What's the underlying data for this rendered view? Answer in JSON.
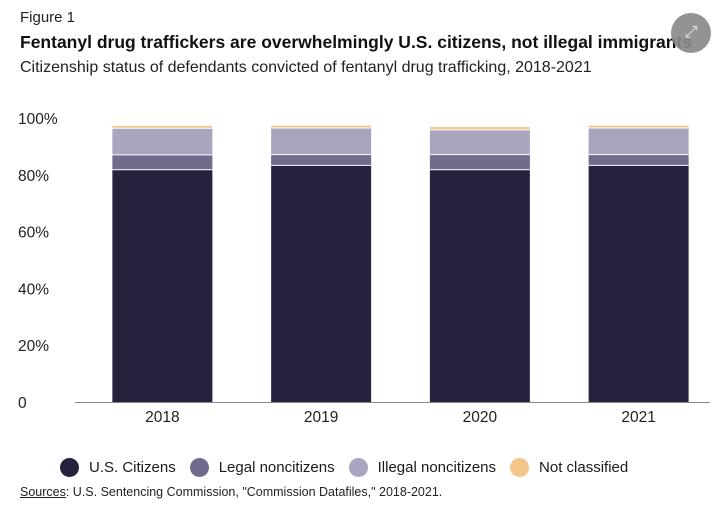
{
  "figure_label": "Figure 1",
  "expand_icon": "expand-icon",
  "chart_data": {
    "type": "bar",
    "stacked": true,
    "title": "Fentanyl drug traffickers are overwhelmingly U.S. citizens, not illegal immigrants",
    "subtitle": "Citizenship status of defendants convicted of fentanyl drug trafficking, 2018-2021",
    "categories": [
      "2018",
      "2019",
      "2020",
      "2021"
    ],
    "series": [
      {
        "name": "U.S. Citizens",
        "color": "#27213d",
        "values": [
          81.8,
          83.3,
          81.8,
          83.3
        ]
      },
      {
        "name": "Legal noncitizens",
        "color": "#716a8c",
        "values": [
          5.2,
          3.8,
          5.3,
          3.8
        ]
      },
      {
        "name": "Illegal noncitizens",
        "color": "#a9a5bf",
        "values": [
          9.4,
          9.4,
          8.7,
          9.4
        ]
      },
      {
        "name": "Not classified",
        "color": "#f3c58b",
        "values": [
          0.8,
          0.8,
          1.0,
          0.8
        ]
      }
    ],
    "yticks": [
      {
        "value": 0,
        "label": "0"
      },
      {
        "value": 20,
        "label": "20%"
      },
      {
        "value": 40,
        "label": "40%"
      },
      {
        "value": 60,
        "label": "60%"
      },
      {
        "value": 80,
        "label": "80%"
      },
      {
        "value": 100,
        "label": "100%"
      }
    ],
    "ylim": [
      0,
      100
    ],
    "xlabel": "",
    "ylabel": "",
    "grid": false,
    "legend_position": "bottom"
  },
  "sources": {
    "label": "Sources",
    "text": ": U.S. Sentencing Commission, \"Commission Datafiles,\" 2018-2021."
  }
}
